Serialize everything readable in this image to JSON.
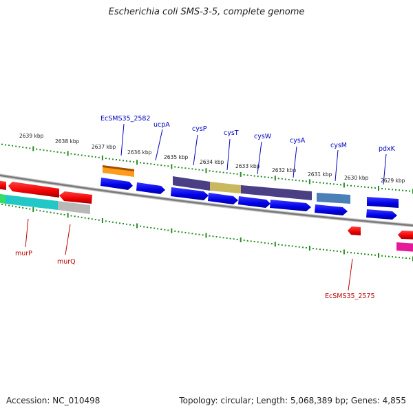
{
  "title": "Escherichia coli SMS-3-5, complete genome",
  "footer": {
    "accession": "Accession: NC_010498",
    "summary": "Topology: circular; Length: 5,068,389 bp; Genes: 4,855"
  },
  "colors": {
    "forward_label": "#0000c0",
    "reverse_label": "#c00000",
    "tick": "#228b22",
    "backbone": "#888888"
  },
  "tick_labels": [
    "2639 kbp",
    "2638 kbp",
    "2637 kbp",
    "2636 kbp",
    "2635 kbp",
    "2634 kbp",
    "2633 kbp",
    "2632 kbp",
    "2631 kbp",
    "2630 kbp",
    "2629 kbp"
  ],
  "gene_labels": {
    "forward": [
      "EcSMS35_2582",
      "ucpA",
      "cysP",
      "cysT",
      "cysW",
      "cysA",
      "cysM",
      "pdxK"
    ],
    "reverse": [
      "murP",
      "murQ",
      "EcSMS35_2575"
    ]
  }
}
